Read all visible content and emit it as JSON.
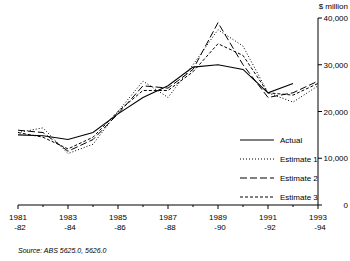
{
  "chart_data": {
    "type": "line",
    "y_label": "$ million",
    "source": "Source: ABS 5625.0, 5626.0",
    "categories": [
      "1981-82",
      null,
      "1983-84",
      null,
      "1985-86",
      null,
      "1987-88",
      null,
      "1989-90",
      null,
      "1991-92",
      null,
      "1993-94"
    ],
    "series": [
      {
        "name": "Actual",
        "color": "#000000",
        "line_style": "solid",
        "values": [
          15000,
          14800,
          14000,
          15500,
          19500,
          23000,
          25500,
          29500,
          30000,
          29000,
          24000,
          26000,
          null
        ]
      },
      {
        "name": "Estimate 1",
        "color": "#000000",
        "line_style": "dotted",
        "values": [
          15500,
          16500,
          11000,
          13000,
          20000,
          26500,
          23000,
          30000,
          37500,
          34000,
          24000,
          22000,
          25500
        ]
      },
      {
        "name": "Estimate 2",
        "color": "#000000",
        "line_style": "longdash",
        "values": [
          16000,
          15500,
          11500,
          14000,
          19500,
          25500,
          25000,
          29000,
          39000,
          30000,
          23000,
          24000,
          26500
        ]
      },
      {
        "name": "Estimate 3",
        "color": "#000000",
        "line_style": "dashed",
        "values": [
          15500,
          14500,
          12000,
          14500,
          20000,
          24500,
          24500,
          28500,
          34500,
          32000,
          24000,
          23500,
          26000
        ]
      }
    ],
    "ylim": [
      0,
      40000
    ],
    "yticks": [
      0,
      {
        "value": 10000,
        "label": "10,000"
      },
      {
        "value": 20000,
        "label": "20,000"
      },
      {
        "value": 30000,
        "label": "30,000"
      },
      {
        "value": 40000,
        "label": "40,000"
      }
    ],
    "grid": false,
    "legend": "lower right"
  }
}
